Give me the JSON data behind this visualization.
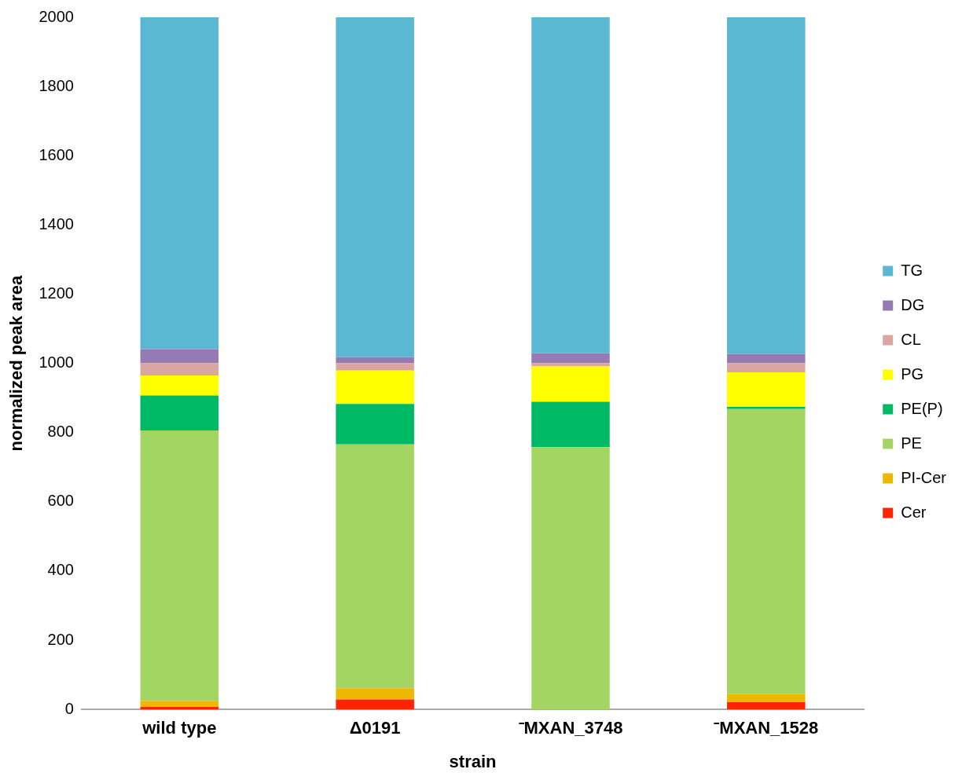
{
  "chart_data": {
    "type": "bar",
    "stacked": true,
    "xlabel": "strain",
    "ylabel": "normalized peak area",
    "categories": [
      "wild type",
      "Δ0191",
      "⁻MXAN_3748",
      "⁻MXAN_1528"
    ],
    "ylim": [
      0,
      2000
    ],
    "yticks": [
      0,
      200,
      400,
      600,
      800,
      1000,
      1200,
      1400,
      1600,
      1800,
      2000
    ],
    "grid": false,
    "legend": "right",
    "series": [
      {
        "name": "Cer",
        "color": "#ff2400",
        "values": [
          7,
          29,
          0,
          21
        ]
      },
      {
        "name": "PI-Cer",
        "color": "#ecb800",
        "values": [
          18,
          32,
          0,
          23
        ]
      },
      {
        "name": "PE",
        "color": "#a2d562",
        "values": [
          781,
          705,
          758,
          824
        ]
      },
      {
        "name": "PE(P)",
        "color": "#00b964",
        "values": [
          101,
          117,
          131,
          6
        ]
      },
      {
        "name": "PG",
        "color": "#ffff00",
        "values": [
          58,
          96,
          102,
          100
        ]
      },
      {
        "name": "CL",
        "color": "#dba6a2",
        "values": [
          36,
          21,
          10,
          26
        ]
      },
      {
        "name": "DG",
        "color": "#967bb3",
        "values": [
          40,
          18,
          28,
          27
        ]
      },
      {
        "name": "TG",
        "color": "#5bb8d2",
        "values": [
          959,
          982,
          971,
          973
        ]
      }
    ]
  }
}
